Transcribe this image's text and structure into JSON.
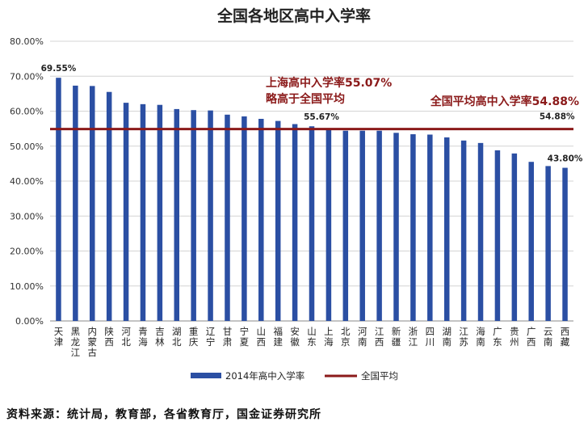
{
  "chart_data": {
    "type": "bar",
    "title": "全国各地区高中入学率",
    "categories": [
      [
        "天",
        "津"
      ],
      [
        "黑",
        "龙",
        "江"
      ],
      [
        "内",
        "蒙",
        "古"
      ],
      [
        "陕",
        "西"
      ],
      [
        "河",
        "北"
      ],
      [
        "青",
        "海"
      ],
      [
        "吉",
        "林"
      ],
      [
        "湖",
        "北"
      ],
      [
        "重",
        "庆"
      ],
      [
        "辽",
        "宁"
      ],
      [
        "甘",
        "肃"
      ],
      [
        "宁",
        "夏"
      ],
      [
        "山",
        "西"
      ],
      [
        "福",
        "建"
      ],
      [
        "安",
        "徽"
      ],
      [
        "山",
        "东"
      ],
      [
        "上",
        "海"
      ],
      [
        "北",
        "京"
      ],
      [
        "河",
        "南"
      ],
      [
        "江",
        "西"
      ],
      [
        "新",
        "疆"
      ],
      [
        "浙",
        "江"
      ],
      [
        "四",
        "川"
      ],
      [
        "湖",
        "南"
      ],
      [
        "江",
        "苏"
      ],
      [
        "海",
        "南"
      ],
      [
        "广",
        "东"
      ],
      [
        "贵",
        "州"
      ],
      [
        "广",
        "西"
      ],
      [
        "云",
        "南"
      ],
      [
        "西",
        "藏"
      ]
    ],
    "series": [
      {
        "name": "2014年高中入学率",
        "color": "#2b4fa3",
        "values": [
          69.55,
          67.3,
          67.2,
          65.5,
          62.4,
          62.0,
          61.8,
          60.6,
          60.3,
          60.2,
          59.0,
          58.5,
          57.8,
          57.2,
          56.3,
          55.67,
          55.07,
          54.4,
          54.4,
          54.4,
          53.8,
          53.4,
          53.3,
          52.5,
          51.6,
          50.9,
          48.8,
          47.9,
          45.5,
          44.3,
          43.8
        ]
      },
      {
        "name": "全国平均",
        "color": "#8b1a1a",
        "value": 54.88
      }
    ],
    "y_ticks": [
      "0.00%",
      "10.00%",
      "20.00%",
      "30.00%",
      "40.00%",
      "50.00%",
      "60.00%",
      "70.00%",
      "80.00%"
    ],
    "ylim": [
      0,
      80
    ],
    "grid": true,
    "legend": "bottom",
    "data_labels": [
      {
        "index": 0,
        "text": "69.55%"
      },
      {
        "index": 15,
        "text": "55.67%"
      },
      {
        "index": 30,
        "text": "43.80%"
      },
      {
        "index": 30,
        "text": "54.88%",
        "on": "average"
      }
    ],
    "annotations": [
      {
        "lines": [
          "上海高中入学率55.07%",
          "略高于全国平均"
        ]
      },
      {
        "lines": [
          "全国平均高中入学率54.88%"
        ]
      }
    ]
  },
  "source": "资料来源：统计局，教育部，各省教育厅，国金证券研究所"
}
